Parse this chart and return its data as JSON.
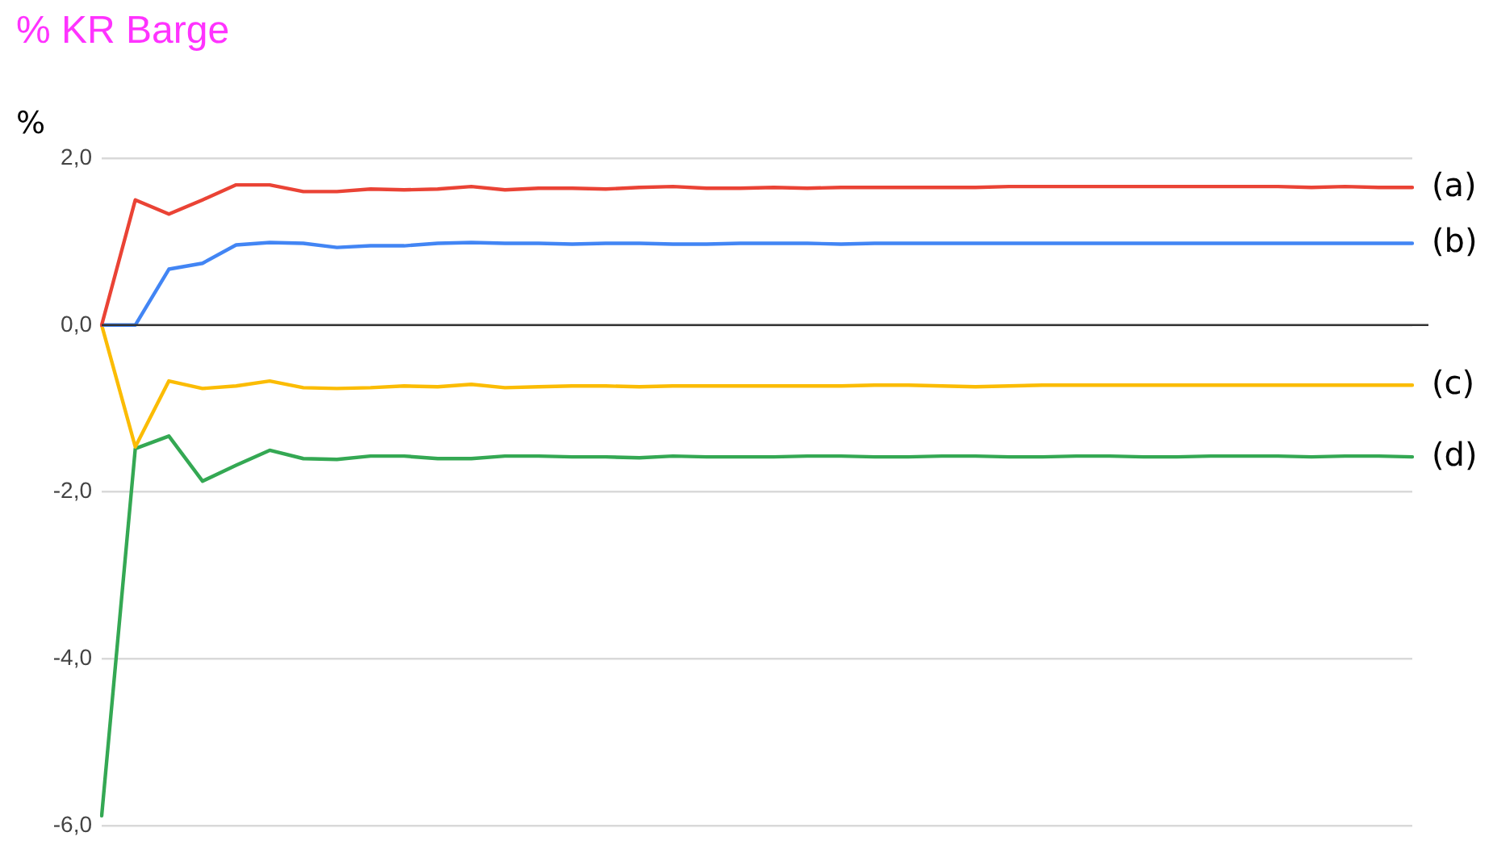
{
  "chart_data": {
    "type": "line",
    "title": "% KR Barge",
    "ylabel": "%",
    "categories": [
      null,
      null,
      null,
      null,
      null,
      null,
      null,
      null,
      null,
      null,
      null,
      null,
      null,
      null,
      null,
      null,
      null,
      null,
      null,
      null,
      null,
      null,
      null,
      null,
      null,
      null,
      null,
      null,
      null,
      null,
      null,
      null,
      null,
      null,
      null,
      null,
      null,
      null,
      null,
      null
    ],
    "series": [
      {
        "name": "(a)",
        "color": "#ea4335",
        "values": [
          0,
          1.5,
          1.33,
          1.5,
          1.68,
          1.68,
          1.6,
          1.6,
          1.63,
          1.62,
          1.63,
          1.66,
          1.62,
          1.64,
          1.64,
          1.63,
          1.65,
          1.66,
          1.64,
          1.64,
          1.65,
          1.64,
          1.65,
          1.65,
          1.65,
          1.65,
          1.65,
          1.66,
          1.66,
          1.66,
          1.66,
          1.66,
          1.66,
          1.66,
          1.66,
          1.66,
          1.65,
          1.66,
          1.65,
          1.65
        ]
      },
      {
        "name": "(b)",
        "color": "#4285f4",
        "values": [
          0,
          0,
          0.67,
          0.74,
          0.96,
          0.99,
          0.98,
          0.93,
          0.95,
          0.95,
          0.98,
          0.99,
          0.98,
          0.98,
          0.97,
          0.98,
          0.98,
          0.97,
          0.97,
          0.98,
          0.98,
          0.98,
          0.97,
          0.98,
          0.98,
          0.98,
          0.98,
          0.98,
          0.98,
          0.98,
          0.98,
          0.98,
          0.98,
          0.98,
          0.98,
          0.98,
          0.98,
          0.98,
          0.98,
          0.98
        ]
      },
      {
        "name": "(c)",
        "color": "#fbbc04",
        "values": [
          0,
          -1.46,
          -0.67,
          -0.76,
          -0.73,
          -0.67,
          -0.75,
          -0.76,
          -0.75,
          -0.73,
          -0.74,
          -0.71,
          -0.75,
          -0.74,
          -0.73,
          -0.73,
          -0.74,
          -0.73,
          -0.73,
          -0.73,
          -0.73,
          -0.73,
          -0.73,
          -0.72,
          -0.72,
          -0.73,
          -0.74,
          -0.73,
          -0.72,
          -0.72,
          -0.72,
          -0.72,
          -0.72,
          -0.72,
          -0.72,
          -0.72,
          -0.72,
          -0.72,
          -0.72,
          -0.72
        ]
      },
      {
        "name": "(d)",
        "color": "#34a853",
        "values": [
          -5.88,
          -1.48,
          -1.33,
          -1.87,
          -1.68,
          -1.5,
          -1.6,
          -1.61,
          -1.57,
          -1.57,
          -1.6,
          -1.6,
          -1.57,
          -1.57,
          -1.58,
          -1.58,
          -1.59,
          -1.57,
          -1.58,
          -1.58,
          -1.58,
          -1.57,
          -1.57,
          -1.58,
          -1.58,
          -1.57,
          -1.57,
          -1.58,
          -1.58,
          -1.57,
          -1.57,
          -1.58,
          -1.58,
          -1.57,
          -1.57,
          -1.57,
          -1.58,
          -1.57,
          -1.57,
          -1.58
        ]
      }
    ],
    "ylim": [
      -6,
      2
    ],
    "yticks": [
      {
        "value": -6,
        "label": "-6,0"
      },
      {
        "value": -4,
        "label": "-4,0"
      },
      {
        "value": -2,
        "label": "-2,0"
      },
      {
        "value": 0,
        "label": "0,0"
      },
      {
        "value": 2,
        "label": "2,0"
      }
    ],
    "ref_lines": [
      {
        "axis": "y",
        "value": 0,
        "color": "#333333"
      }
    ],
    "tick_labels": "y",
    "grid": "y",
    "legend": false,
    "marker": "none",
    "line_style": "solid"
  }
}
